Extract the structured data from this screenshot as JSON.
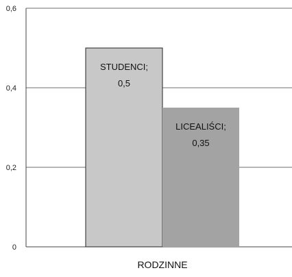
{
  "chart_data": {
    "type": "bar",
    "categories": [
      "RODZINNE"
    ],
    "series": [
      {
        "name": "STUDENCI",
        "values": [
          0.5
        ],
        "color": "#c8c8c8"
      },
      {
        "name": "LICEALIŚCI",
        "values": [
          0.35
        ],
        "color": "#a3a3a3"
      }
    ],
    "data_labels": [
      {
        "series": "STUDENCI;",
        "value": "0,5"
      },
      {
        "series": "LICEALIŚCI;",
        "value": "0,35"
      }
    ],
    "y_ticks": [
      {
        "value": 0,
        "label": "0"
      },
      {
        "value": 0.2,
        "label": "0,2"
      },
      {
        "value": 0.4,
        "label": "0,4"
      },
      {
        "value": 0.6,
        "label": "0,6"
      }
    ],
    "ylim": [
      0,
      0.6
    ],
    "grid": true,
    "legend": "none",
    "title": "",
    "xlabel": "",
    "ylabel": ""
  }
}
